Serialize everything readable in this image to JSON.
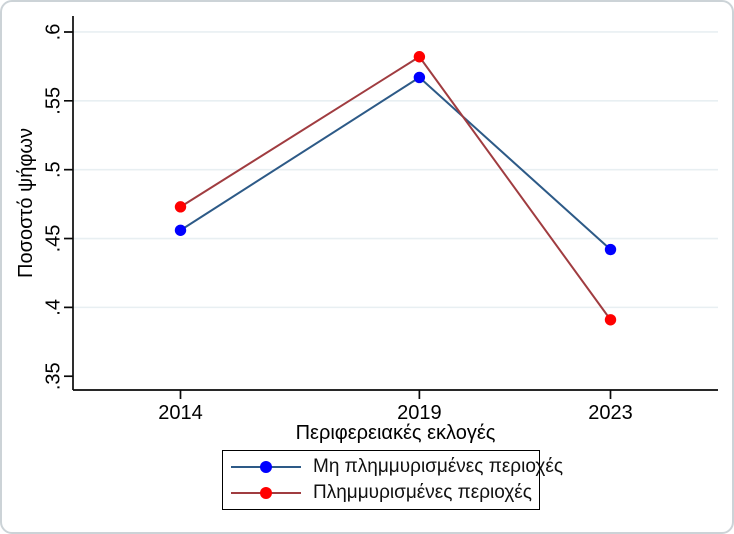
{
  "figure": {
    "background": "#ffffff",
    "frame_border_color": "#ccd3d7"
  },
  "chart_data": {
    "type": "line",
    "x": [
      2014,
      2019,
      2023
    ],
    "x_tick_labels": [
      "2014",
      "2019",
      "2023"
    ],
    "xlabel": "Περιφερειακές εκλογές",
    "ylabel": "Ποσοστό ψήφων",
    "y_ticks": [
      0.35,
      0.4,
      0.45,
      0.5,
      0.55,
      0.6
    ],
    "y_tick_labels": [
      ".35",
      ".4",
      ".45",
      ".5",
      ".55",
      ".6"
    ],
    "gridline_values": [
      0.4,
      0.45,
      0.5,
      0.55,
      0.6
    ],
    "xlim": [
      2011.75,
      2025.25
    ],
    "ylim": [
      0.34,
      0.6116
    ],
    "grid": true,
    "legend_position": "bottom-center",
    "series": [
      {
        "name": "Μη πλημμυρισμένες περιοχές",
        "values": [
          0.456,
          0.567,
          0.442
        ],
        "line_color": "#2d5a87",
        "marker_color": "#0000ff"
      },
      {
        "name": "Πλημμυρισμένες περιοχές",
        "values": [
          0.473,
          0.582,
          0.391
        ],
        "line_color": "#a03c40",
        "marker_color": "#ff0000"
      }
    ],
    "style": {
      "gridline_color": "#e8eff2",
      "axis_color": "#0a0a0a",
      "tick_color": "#0a0a0a"
    }
  }
}
